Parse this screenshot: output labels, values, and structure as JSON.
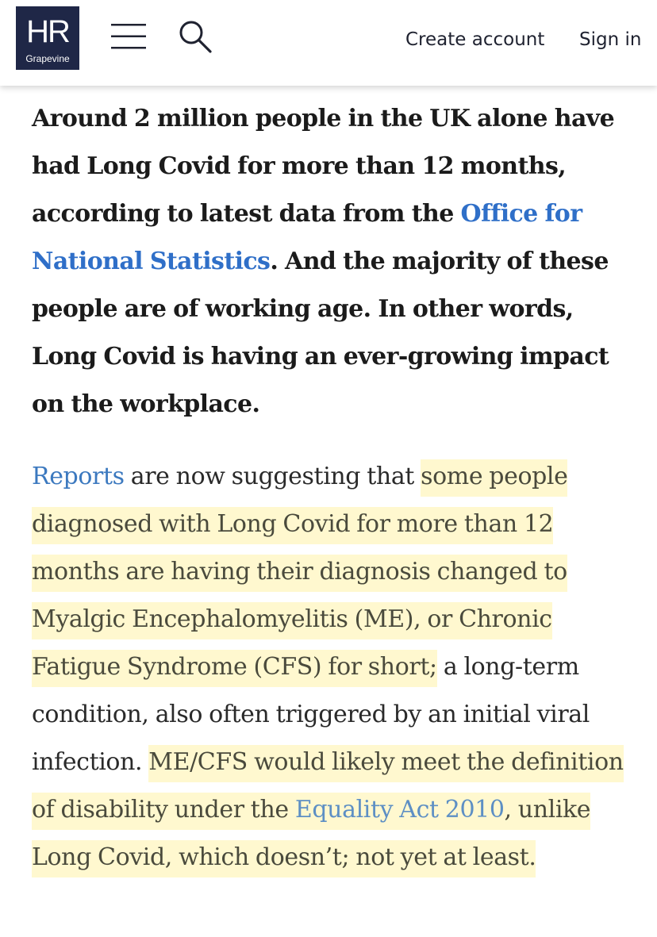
{
  "header": {
    "logo_main": "HR",
    "logo_sub": "Grapevine",
    "menu_icon": "hamburger-menu-icon",
    "search_icon": "search-icon",
    "create_account_label": "Create account",
    "sign_in_label": "Sign in",
    "brand_color": "#1f2747"
  },
  "article": {
    "lead": {
      "text_1": "Around 2 million people in the UK alone have had Long Covid for more than 12 months, according to latest data from the ",
      "link_ons": "Office for National Statistics",
      "text_2": ". And the majority of these people are of working age. In other words, Long Covid is having an ever-growing impact on the workplace."
    },
    "body": {
      "link_reports": "Reports",
      "text_1": " are now suggesting that ",
      "highlight_1": "some people diagnosed with Long Covid for more than 12 months are having their diagnosis changed to Myalgic Encephalomyelitis (ME), or Chronic Fatigue Syndrome (CFS) for short;",
      "text_2": " a long-term condition, also often triggered by an initial viral infection. ",
      "highlight_2a": "ME/CFS would likely meet the definition of disability under the ",
      "link_equality": "Equality Act 2010",
      "highlight_2b": ", unlike Long Covid, which doesn’t; not yet at least."
    },
    "link_color": "#2f6fc8",
    "highlight_color": "#fff4b8"
  }
}
